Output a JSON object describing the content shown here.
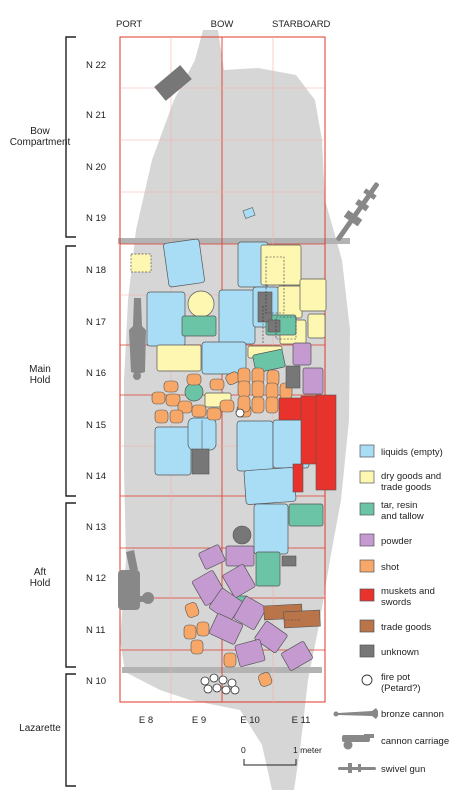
{
  "header": {
    "port": "PORT",
    "bow": "BOW",
    "starboard": "STARBOARD"
  },
  "sections": [
    {
      "id": "bow-compartment",
      "lines": [
        "Bow",
        "Compartment"
      ]
    },
    {
      "id": "main-hold",
      "lines": [
        "Main",
        "Hold"
      ]
    },
    {
      "id": "aft-hold",
      "lines": [
        "Aft",
        "Hold"
      ]
    },
    {
      "id": "lazarette",
      "lines": [
        "Lazarette"
      ]
    }
  ],
  "rows": [
    "N 22",
    "N 21",
    "N 20",
    "N 19",
    "N 18",
    "N 17",
    "N 16",
    "N 15",
    "N 14",
    "N 13",
    "N 12",
    "N 11",
    "N 10"
  ],
  "columns": [
    "E 8",
    "E 9",
    "E 10",
    "E 11"
  ],
  "scale": {
    "zero": "0",
    "one": "1 meter"
  },
  "legend": [
    {
      "key": "liquids",
      "lines": [
        "liquids (empty)"
      ],
      "color": "#a9dcf5"
    },
    {
      "key": "dry",
      "lines": [
        "dry goods and",
        "trade goods"
      ],
      "color": "#fdf7b2"
    },
    {
      "key": "tar",
      "lines": [
        "tar, resin",
        "and tallow"
      ],
      "color": "#6cc4a6"
    },
    {
      "key": "powder",
      "lines": [
        "powder"
      ],
      "color": "#c49ad0"
    },
    {
      "key": "shot",
      "lines": [
        "shot"
      ],
      "color": "#f7a868"
    },
    {
      "key": "muskets",
      "lines": [
        "muskets and",
        "swords"
      ],
      "color": "#e8332c"
    },
    {
      "key": "trade",
      "lines": [
        "trade goods"
      ],
      "color": "#b9744a"
    },
    {
      "key": "unknown",
      "lines": [
        "unknown"
      ],
      "color": "#777777"
    },
    {
      "key": "firepot",
      "lines": [
        "fire pot",
        "(Petard?)"
      ],
      "color": "#ffffff"
    },
    {
      "key": "bronze-cannon",
      "lines": [
        "bronze cannon"
      ],
      "color": "#888888"
    },
    {
      "key": "cannon-carriage",
      "lines": [
        "cannon carriage"
      ],
      "color": "#888888"
    },
    {
      "key": "swivel-gun",
      "lines": [
        "swivel gun"
      ],
      "color": "#888888"
    }
  ],
  "colors": {
    "hull": "#d6d6d6",
    "grid": "#e23a2a",
    "ink": "#222222"
  }
}
